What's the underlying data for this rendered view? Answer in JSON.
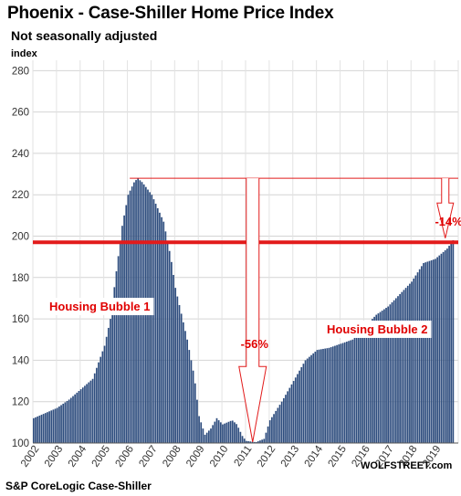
{
  "chart_data": {
    "type": "bar",
    "title": "Phoenix - Case-Shiller Home Price Index",
    "subtitle": "Not seasonally adjusted",
    "ylabel": "index",
    "source": "S&P CoreLogic Case-Shiller",
    "brand": "WOLFSTREET.com",
    "ylim": [
      100,
      285
    ],
    "yticks": [
      100,
      120,
      140,
      160,
      180,
      200,
      220,
      240,
      260,
      280
    ],
    "grid": true,
    "bar_color": "#2e4d7e",
    "accent_color": "#e21b1b",
    "x_start_year": 2002,
    "x_end_year": 2019,
    "x_tick_labels": [
      "2002",
      "2003",
      "2004",
      "2005",
      "2006",
      "2007",
      "2008",
      "2009",
      "2010",
      "2011",
      "2012",
      "2013",
      "2014",
      "2015",
      "2016",
      "2017",
      "2018",
      "2019"
    ],
    "keypoints": [
      [
        2002.0,
        112
      ],
      [
        2003.0,
        117
      ],
      [
        2003.5,
        121
      ],
      [
        2004.0,
        126
      ],
      [
        2004.5,
        131
      ],
      [
        2005.0,
        147
      ],
      [
        2005.25,
        160
      ],
      [
        2005.5,
        183
      ],
      [
        2005.75,
        205
      ],
      [
        2006.0,
        220
      ],
      [
        2006.25,
        226
      ],
      [
        2006.4,
        228
      ],
      [
        2006.6,
        226
      ],
      [
        2007.0,
        220
      ],
      [
        2007.5,
        207
      ],
      [
        2007.8,
        190
      ],
      [
        2008.0,
        175
      ],
      [
        2008.5,
        150
      ],
      [
        2008.8,
        132
      ],
      [
        2009.0,
        113
      ],
      [
        2009.25,
        104
      ],
      [
        2009.5,
        107
      ],
      [
        2009.75,
        112
      ],
      [
        2010.0,
        109
      ],
      [
        2010.2,
        110
      ],
      [
        2010.4,
        111
      ],
      [
        2010.6,
        109
      ],
      [
        2010.85,
        103
      ],
      [
        2011.0,
        101
      ],
      [
        2011.4,
        100.4
      ],
      [
        2011.75,
        102
      ],
      [
        2012.0,
        111
      ],
      [
        2012.5,
        120
      ],
      [
        2013.0,
        130
      ],
      [
        2013.5,
        140
      ],
      [
        2014.0,
        145
      ],
      [
        2014.5,
        146
      ],
      [
        2015.0,
        148
      ],
      [
        2015.5,
        150
      ],
      [
        2016.0,
        156
      ],
      [
        2016.5,
        162
      ],
      [
        2017.0,
        166
      ],
      [
        2017.5,
        172
      ],
      [
        2018.0,
        178
      ],
      [
        2018.5,
        187
      ],
      [
        2019.0,
        189
      ],
      [
        2019.5,
        194
      ],
      [
        2019.75,
        198
      ]
    ],
    "annotations": {
      "bubble1_label": "Housing Bubble 1",
      "bubble2_label": "Housing Bubble 2",
      "drop_label": "-56%",
      "current_label": "-14%",
      "peak_level": 228,
      "current_level": 197
    }
  }
}
